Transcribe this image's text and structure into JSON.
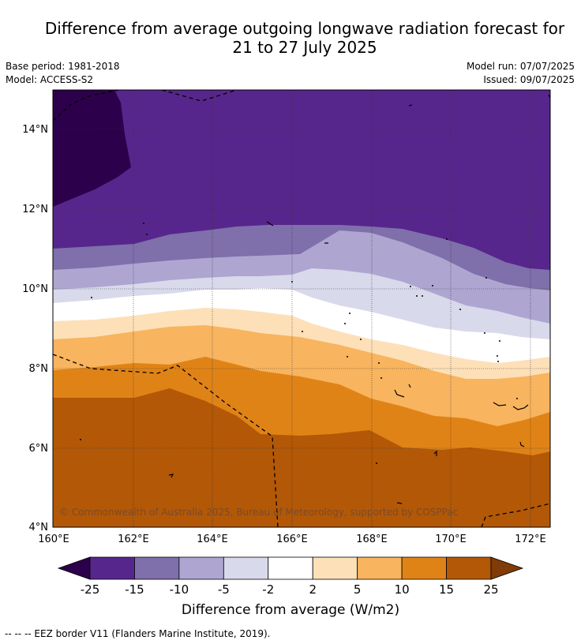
{
  "title": {
    "line1": "Difference from average outgoing longwave radiation forecast for",
    "line2": "21 to 27 July 2025"
  },
  "meta": {
    "base_period": "Base period: 1981-2018",
    "model": "Model: ACCESS-S2",
    "model_run": "Model run: 07/07/2025",
    "issued": "Issued: 09/07/2025"
  },
  "map": {
    "lat_labels": [
      "14°N",
      "12°N",
      "10°N",
      "8°N",
      "6°N",
      "4°N"
    ],
    "lon_labels": [
      "160°E",
      "162°E",
      "164°E",
      "166°E",
      "168°E",
      "170°E",
      "172°E"
    ],
    "copyright": "© Commonwealth of Australia 2025, Bureau of Meteorology, supported by COSPPac"
  },
  "colorbar": {
    "ticks": [
      "-25",
      "-15",
      "-10",
      "-5",
      "-2",
      "2",
      "5",
      "10",
      "15",
      "25"
    ],
    "colors": [
      "#57268c",
      "#7f6fab",
      "#aea6d0",
      "#d9d9ec",
      "#ffffff",
      "#fde0b8",
      "#f8b45e",
      "#e08317",
      "#b35806"
    ],
    "under_color": "#2d004b",
    "over_color": "#7f3b08",
    "label": "Difference from average (W/m2)"
  },
  "footer": {
    "legend": "--  --  -- EEZ border V11 (Flanders Marine Institute, 2019)."
  }
}
